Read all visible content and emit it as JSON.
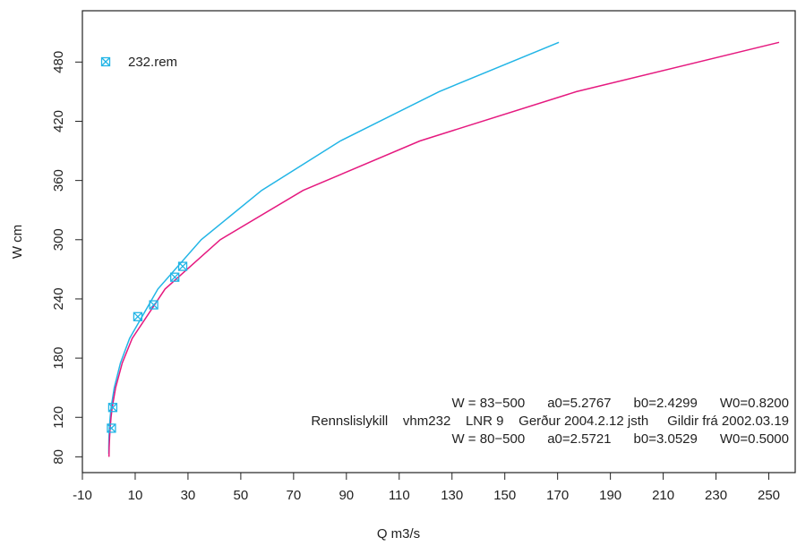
{
  "chart_data": {
    "type": "line",
    "xlabel": "Q m3/s",
    "ylabel": "W cm",
    "xlim": [
      -10,
      260
    ],
    "xticks": [
      -10,
      10,
      30,
      50,
      70,
      90,
      110,
      130,
      150,
      170,
      190,
      210,
      230,
      250
    ],
    "ylim": [
      64,
      532
    ],
    "yticks": [
      80,
      120,
      180,
      240,
      300,
      360,
      420,
      480
    ],
    "series": [
      {
        "type": "line",
        "color": "#22b5e6",
        "x": [
          0,
          0.011,
          0.082,
          0.24,
          0.5,
          0.89,
          2.07,
          4.42,
          7.89,
          18.6,
          35.0,
          57.9,
          87.7,
          125.1,
          170.5
        ],
        "values": [
          83,
          90,
          100,
          110,
          120,
          130,
          150,
          175,
          200,
          250,
          300,
          350,
          400,
          450,
          500
        ]
      },
      {
        "type": "line",
        "color": "#e5197f",
        "x": [
          0.065,
          0.157,
          0.31,
          0.54,
          0.87,
          1.3,
          2.57,
          5.08,
          8.87,
          21.3,
          42.2,
          73.6,
          117.8,
          177.1,
          253.9
        ],
        "values": [
          80,
          90,
          100,
          110,
          120,
          130,
          150,
          175,
          200,
          250,
          300,
          350,
          400,
          450,
          500
        ]
      },
      {
        "type": "scatter",
        "name": "232.rem",
        "color": "#22b5e6",
        "x": [
          1,
          1.5,
          11,
          17,
          25,
          28
        ],
        "values": [
          109,
          130,
          222,
          234,
          262,
          273
        ]
      }
    ],
    "annotations": [
      {
        "text": "W = 83−500      a0=5.2767      b0=2.4299      W0=0.8200",
        "color": "#22b5e6"
      },
      {
        "text": "Rennslislykill    vhm232    LNR 9    Gerður 2004.2.12 jsth     Gildir frá 2002.03.19",
        "color": "#e5197f"
      },
      {
        "text": "W = 80−500      a0=2.5721      b0=3.0529      W0=0.5000",
        "color": "#e5197f"
      }
    ]
  }
}
